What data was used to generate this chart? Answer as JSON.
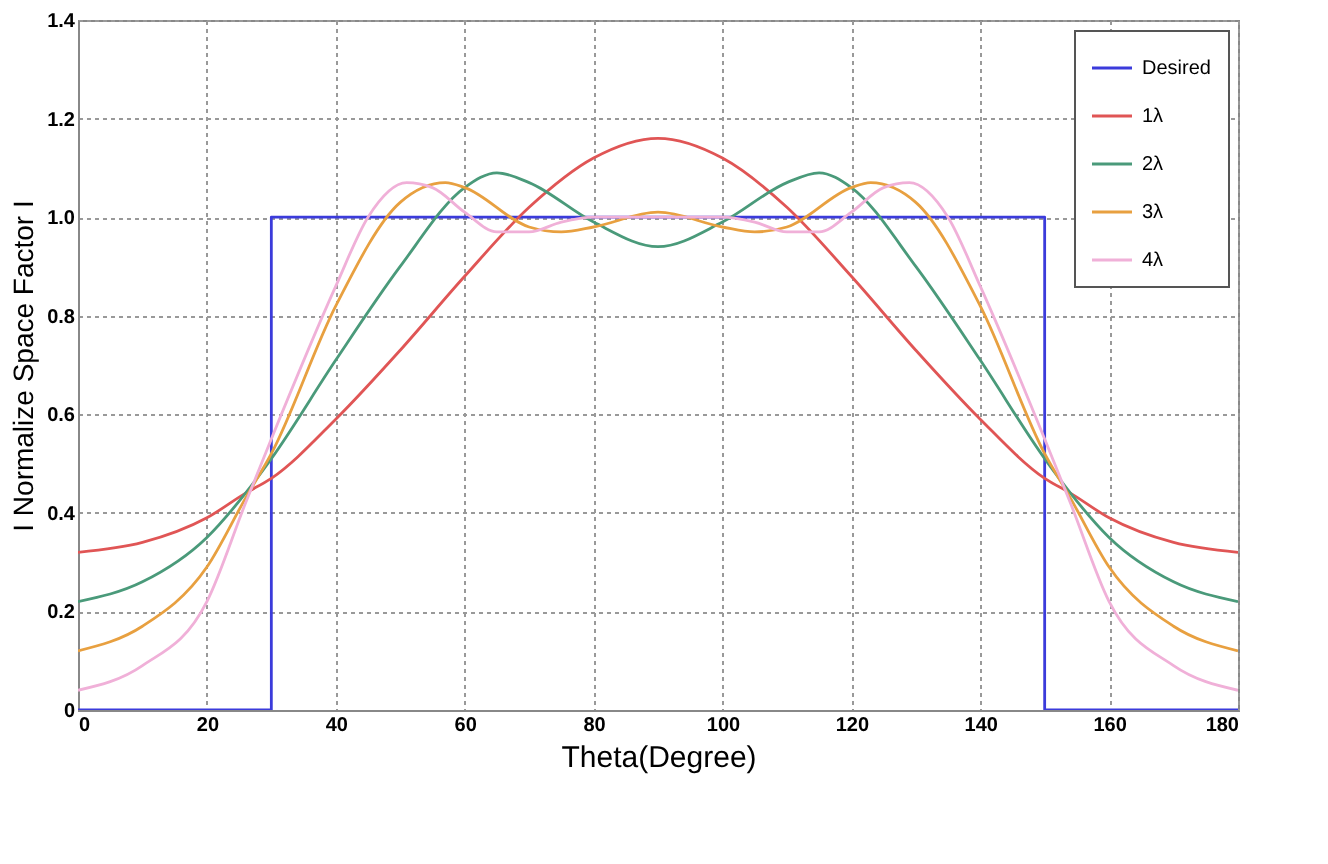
{
  "chart_data": {
    "type": "line",
    "xlabel": "Theta(Degree)",
    "ylabel": "I Normalize  Space Factor I",
    "xlim": [
      0,
      180
    ],
    "xticks": [
      0,
      20,
      40,
      60,
      80,
      100,
      120,
      140,
      160,
      180
    ],
    "ylim": [
      0,
      1.4
    ],
    "yticks": [
      0,
      0.2,
      0.4,
      0.6,
      0.8,
      {
        "value": 1,
        "label": "1.0"
      },
      1.2,
      1.4
    ],
    "grid": true,
    "legend": "top right",
    "series": [
      {
        "name": "Desired",
        "color": "#3b3bdb",
        "x": [
          0,
          30,
          30,
          150,
          150,
          180
        ],
        "values": [
          0,
          0,
          1,
          1,
          0,
          0
        ]
      },
      {
        "name": "1λ",
        "color": "#e05555",
        "x": [
          0,
          10,
          20,
          26,
          30,
          40,
          50,
          60,
          70,
          80,
          90,
          100,
          110,
          120,
          130,
          140,
          150,
          154,
          160,
          170,
          180
        ],
        "values": [
          0.32,
          0.34,
          0.39,
          0.44,
          0.47,
          0.59,
          0.73,
          0.88,
          1.02,
          1.12,
          1.16,
          1.12,
          1.02,
          0.88,
          0.73,
          0.59,
          0.47,
          0.44,
          0.39,
          0.34,
          0.32
        ]
      },
      {
        "name": "2λ",
        "color": "#4a9a7a",
        "x": [
          0,
          10,
          20,
          26,
          30,
          40,
          50,
          60,
          65,
          70,
          80,
          90,
          100,
          110,
          115,
          120,
          130,
          140,
          150,
          154,
          160,
          170,
          180
        ],
        "values": [
          0.22,
          0.26,
          0.35,
          0.44,
          0.51,
          0.71,
          0.9,
          1.06,
          1.09,
          1.07,
          0.99,
          0.94,
          0.99,
          1.07,
          1.09,
          1.06,
          0.9,
          0.71,
          0.51,
          0.44,
          0.35,
          0.26,
          0.22
        ]
      },
      {
        "name": "3λ",
        "color": "#e8a040",
        "x": [
          0,
          10,
          20,
          26,
          30,
          40,
          50,
          57,
          60,
          70,
          75,
          80,
          90,
          100,
          105,
          110,
          120,
          123,
          130,
          140,
          150,
          154,
          160,
          170,
          180
        ],
        "values": [
          0.12,
          0.17,
          0.29,
          0.43,
          0.52,
          0.82,
          1.03,
          1.07,
          1.06,
          0.98,
          0.97,
          0.98,
          1.01,
          0.98,
          0.97,
          0.98,
          1.06,
          1.07,
          1.03,
          0.82,
          0.52,
          0.43,
          0.29,
          0.17,
          0.12
        ]
      },
      {
        "name": "4λ",
        "color": "#f0b0d8",
        "x": [
          0,
          10,
          20,
          26,
          30,
          40,
          45,
          51,
          55,
          60,
          65,
          70,
          75,
          80,
          90,
          100,
          105,
          110,
          115,
          120,
          125,
          129,
          135,
          140,
          150,
          154,
          160,
          170,
          180
        ],
        "values": [
          0.04,
          0.09,
          0.22,
          0.42,
          0.55,
          0.86,
          1.0,
          1.07,
          1.06,
          1.01,
          0.97,
          0.97,
          0.99,
          1.0,
          1.0,
          1.0,
          0.99,
          0.97,
          0.97,
          1.01,
          1.06,
          1.07,
          1.0,
          0.86,
          0.55,
          0.42,
          0.22,
          0.09,
          0.04
        ]
      }
    ]
  }
}
